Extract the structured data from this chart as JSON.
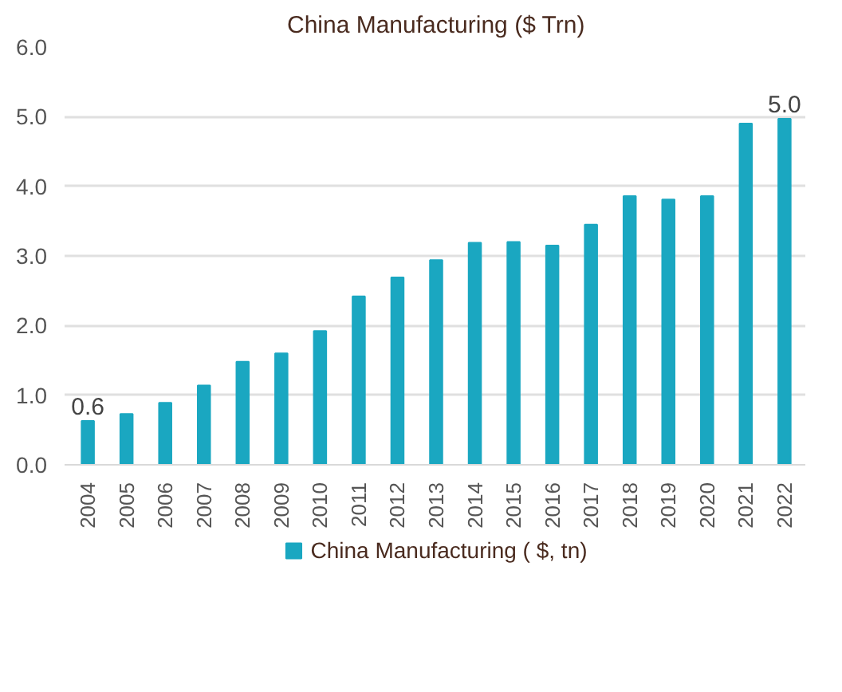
{
  "chart_data": {
    "type": "bar",
    "title": "China Manufacturing ($ Trn)",
    "categories": [
      "2004",
      "2005",
      "2006",
      "2007",
      "2008",
      "2009",
      "2010",
      "2011",
      "2012",
      "2013",
      "2014",
      "2015",
      "2016",
      "2017",
      "2018",
      "2019",
      "2020",
      "2021",
      "2022"
    ],
    "series": [
      {
        "name": "China Manufacturing ( $, tn)",
        "color": "#1aa7c1",
        "values": [
          0.63,
          0.73,
          0.89,
          1.14,
          1.48,
          1.6,
          1.92,
          2.42,
          2.69,
          2.94,
          3.19,
          3.2,
          3.15,
          3.45,
          3.86,
          3.81,
          3.86,
          4.9,
          4.97
        ],
        "value_labels": [
          "0.6",
          null,
          null,
          null,
          null,
          null,
          null,
          null,
          null,
          null,
          null,
          null,
          null,
          null,
          null,
          null,
          null,
          null,
          "5.0"
        ]
      }
    ],
    "ylim": [
      0,
      6
    ],
    "yticks": [
      {
        "value": 0,
        "label": "0.0"
      },
      {
        "value": 1,
        "label": "1.0"
      },
      {
        "value": 2,
        "label": "2.0"
      },
      {
        "value": 3,
        "label": "3.0"
      },
      {
        "value": 4,
        "label": "4.0"
      },
      {
        "value": 5,
        "label": "5.0"
      },
      {
        "value": 6,
        "label": "6.0"
      }
    ],
    "grid": "y",
    "legend": "bottom"
  }
}
